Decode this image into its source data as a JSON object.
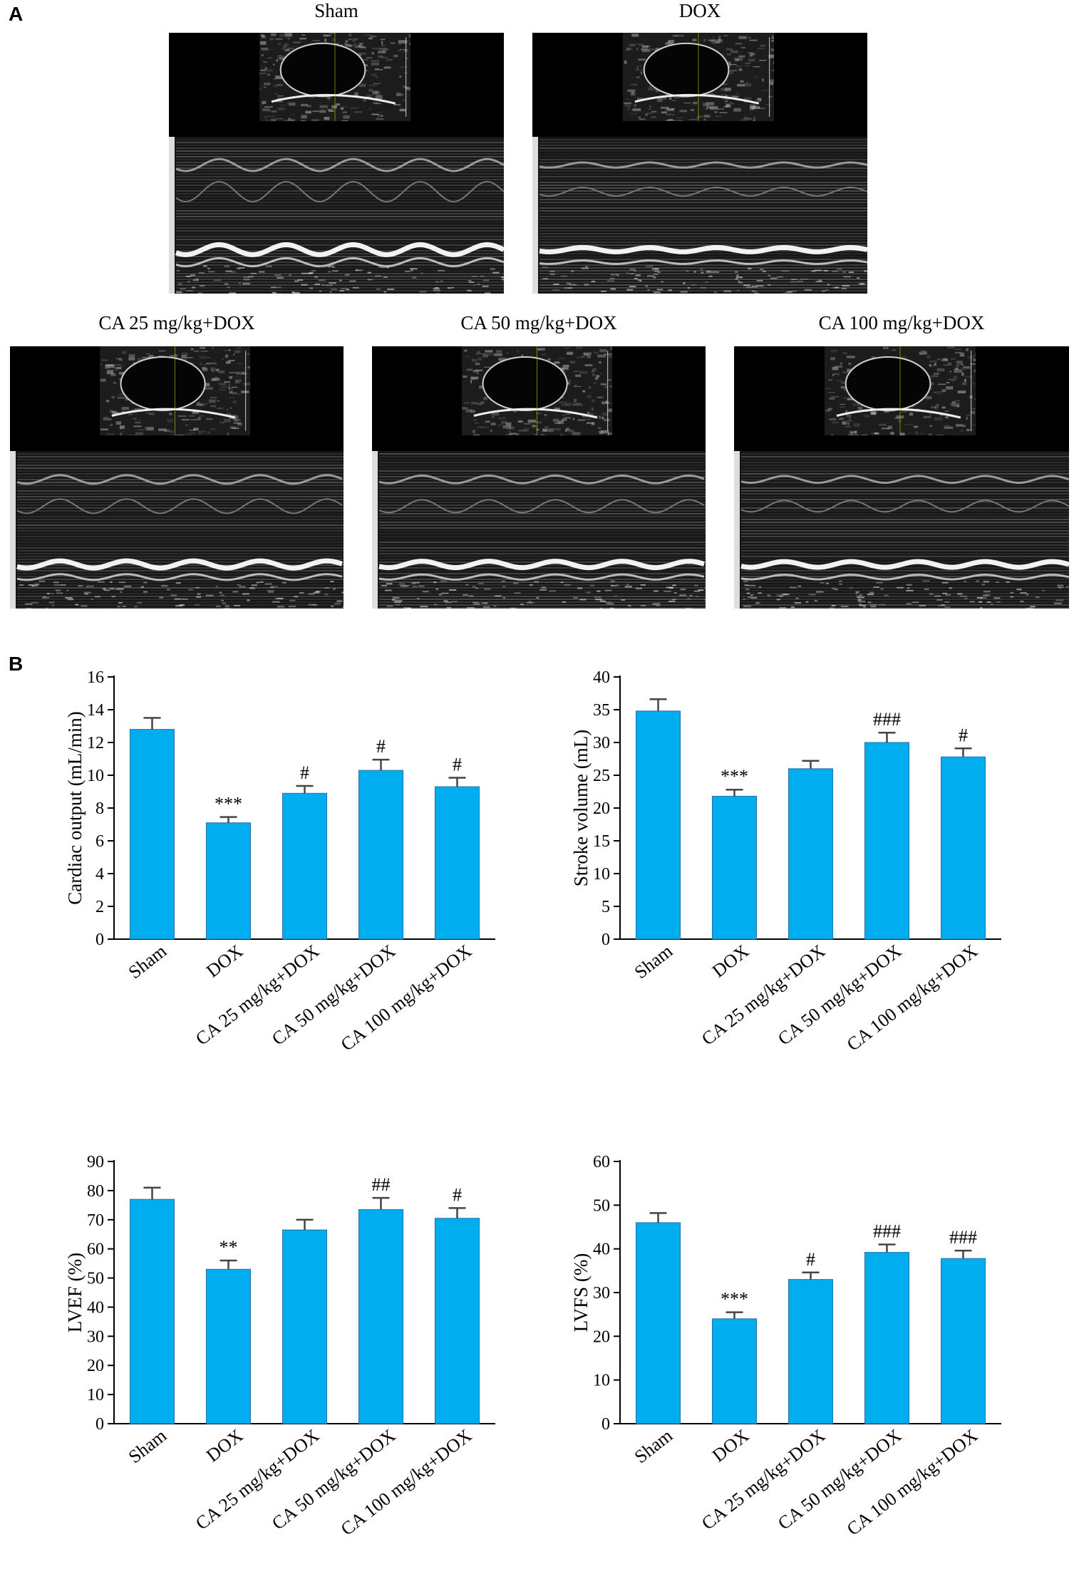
{
  "panels": {
    "a": "A",
    "b": "B"
  },
  "echo_panels": [
    {
      "title": "Sham"
    },
    {
      "title": "DOX"
    },
    {
      "title": "CA 25 mg/kg+DOX"
    },
    {
      "title": "CA 50 mg/kg+DOX"
    },
    {
      "title": "CA 100 mg/kg+DOX"
    }
  ],
  "colors": {
    "bar": "#00aeef",
    "bar_edge": "#2a6fa8",
    "axis": "#000000"
  },
  "chart_data": [
    {
      "type": "bar",
      "categories": [
        "Sham",
        "DOX",
        "CA 25 mg/kg+DOX",
        "CA 50 mg/kg+DOX",
        "CA 100 mg/kg+DOX"
      ],
      "values": [
        12.8,
        7.1,
        8.9,
        10.3,
        9.3
      ],
      "errors": [
        0.7,
        0.35,
        0.45,
        0.65,
        0.55
      ],
      "annotations": [
        "",
        "***",
        "#",
        "#",
        "#"
      ],
      "ylabel": "Cardiac output (mL/min)",
      "ylim": [
        0,
        16
      ],
      "yticks": [
        "0",
        "2",
        "4",
        "6",
        "8",
        "10",
        "12",
        "14",
        "16"
      ]
    },
    {
      "type": "bar",
      "categories": [
        "Sham",
        "DOX",
        "CA 25 mg/kg+DOX",
        "CA 50 mg/kg+DOX",
        "CA 100 mg/kg+DOX"
      ],
      "values": [
        34.8,
        21.8,
        26.0,
        30.0,
        27.8
      ],
      "errors": [
        1.8,
        1.0,
        1.2,
        1.5,
        1.3
      ],
      "annotations": [
        "",
        "***",
        "",
        "###",
        "#"
      ],
      "ylabel": "Stroke volume (mL)",
      "ylim": [
        0,
        40
      ],
      "yticks": [
        "0",
        "5",
        "10",
        "15",
        "20",
        "25",
        "30",
        "35",
        "40"
      ]
    },
    {
      "type": "bar",
      "categories": [
        "Sham",
        "DOX",
        "CA 25 mg/kg+DOX",
        "CA 50 mg/kg+DOX",
        "CA 100 mg/kg+DOX"
      ],
      "values": [
        77.0,
        53.0,
        66.5,
        73.5,
        70.5
      ],
      "errors": [
        4.0,
        3.0,
        3.5,
        4.0,
        3.5
      ],
      "annotations": [
        "",
        "**",
        "",
        "##",
        "#"
      ],
      "ylabel": "LVEF (%)",
      "ylim": [
        0,
        90
      ],
      "yticks": [
        "0",
        "10",
        "20",
        "30",
        "40",
        "50",
        "60",
        "70",
        "80",
        "90"
      ]
    },
    {
      "type": "bar",
      "categories": [
        "Sham",
        "DOX",
        "CA 25 mg/kg+DOX",
        "CA 50 mg/kg+DOX",
        "CA 100 mg/kg+DOX"
      ],
      "values": [
        46.0,
        24.0,
        33.0,
        39.2,
        37.8
      ],
      "errors": [
        2.2,
        1.5,
        1.6,
        1.8,
        1.8
      ],
      "annotations": [
        "",
        "***",
        "#",
        "###",
        "###"
      ],
      "ylabel": "LVFS (%)",
      "ylim": [
        0,
        60
      ],
      "yticks": [
        "0",
        "10",
        "20",
        "30",
        "40",
        "50",
        "60"
      ]
    }
  ]
}
